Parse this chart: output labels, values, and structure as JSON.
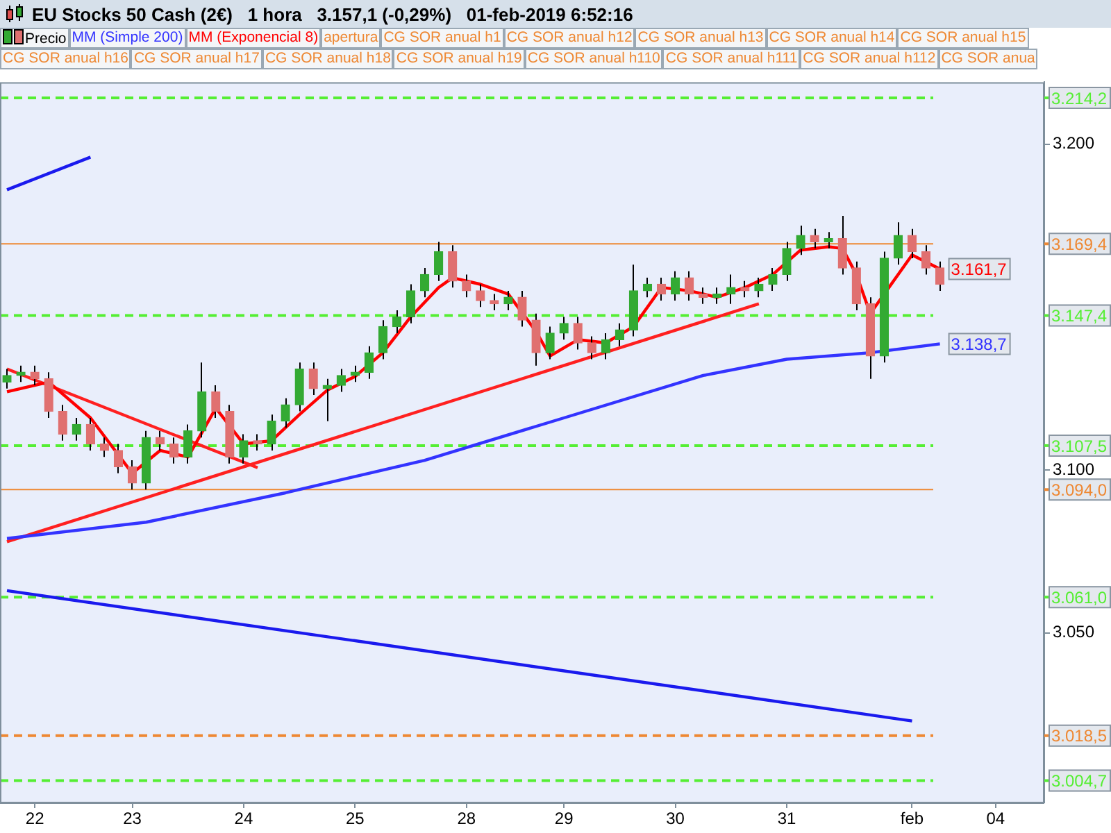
{
  "chart_data": {
    "type": "candlestick",
    "title": "EU Stocks 50 Cash (2€)   1 hora   3.157,1 (-0,29%)   01-feb-2019 6:52:16",
    "legend": "top left",
    "categories": [
      null,
      null,
      "22",
      null,
      null,
      null,
      null,
      null,
      null,
      "23",
      null,
      null,
      null,
      null,
      null,
      null,
      null,
      "24",
      null,
      null,
      null,
      null,
      null,
      null,
      null,
      "25",
      null,
      null,
      null,
      null,
      null,
      null,
      null,
      "28",
      null,
      null,
      null,
      null,
      null,
      null,
      "29",
      null,
      null,
      null,
      null,
      null,
      null,
      null,
      "30",
      null,
      null,
      null,
      null,
      null,
      null,
      null,
      "31",
      null,
      null,
      null,
      null,
      null,
      null,
      null,
      null,
      "feb",
      null,
      null,
      null,
      null,
      null,
      "04",
      null,
      null,
      null
    ],
    "ylim": [
      2998,
      3219
    ],
    "yticks": [
      {
        "value": 3050,
        "label": "3.050"
      },
      {
        "value": 3100,
        "label": "3.100"
      },
      {
        "value": 3200,
        "label": "3.200"
      }
    ],
    "series": [
      {
        "name": "Precio",
        "color": "#000000",
        "ohlc": [
          [
            3127,
            3131,
            3125,
            3129
          ],
          [
            3129,
            3132,
            3127,
            3130
          ],
          [
            3130,
            3132,
            3126,
            3128
          ],
          [
            3128,
            3130,
            3116,
            3118
          ],
          [
            3118,
            3120,
            3109,
            3111
          ],
          [
            3111,
            3116,
            3109,
            3114
          ],
          [
            3114,
            3116,
            3106,
            3108
          ],
          [
            3108,
            3110,
            3104,
            3106
          ],
          [
            3106,
            3108,
            3099,
            3101
          ],
          [
            3101,
            3103,
            3094,
            3096
          ],
          [
            3096,
            3112,
            3094,
            3110
          ],
          [
            3110,
            3112,
            3106,
            3108
          ],
          [
            3108,
            3110,
            3102,
            3104
          ],
          [
            3104,
            3114,
            3102,
            3112
          ],
          [
            3112,
            3133,
            3110,
            3124
          ],
          [
            3124,
            3126,
            3116,
            3118
          ],
          [
            3118,
            3120,
            3102,
            3104
          ],
          [
            3104,
            3111,
            3102,
            3109
          ],
          [
            3109,
            3111,
            3106,
            3108
          ],
          [
            3108,
            3117,
            3106,
            3115
          ],
          [
            3115,
            3122,
            3113,
            3120
          ],
          [
            3120,
            3133,
            3118,
            3131
          ],
          [
            3131,
            3133,
            3123,
            3125
          ],
          [
            3125,
            3128,
            3115,
            3126
          ],
          [
            3126,
            3131,
            3124,
            3129
          ],
          [
            3129,
            3132,
            3127,
            3130
          ],
          [
            3130,
            3138,
            3128,
            3136
          ],
          [
            3136,
            3146,
            3134,
            3144
          ],
          [
            3144,
            3149,
            3142,
            3147
          ],
          [
            3147,
            3157,
            3145,
            3155
          ],
          [
            3155,
            3162,
            3153,
            3160
          ],
          [
            3160,
            3170,
            3158,
            3167
          ],
          [
            3167,
            3169,
            3156,
            3158
          ],
          [
            3158,
            3160,
            3153,
            3155
          ],
          [
            3155,
            3157,
            3150,
            3152
          ],
          [
            3152,
            3154,
            3149,
            3151
          ],
          [
            3151,
            3155,
            3149,
            3153
          ],
          [
            3153,
            3155,
            3144,
            3146
          ],
          [
            3146,
            3148,
            3132,
            3136
          ],
          [
            3136,
            3144,
            3134,
            3142
          ],
          [
            3142,
            3147,
            3140,
            3145
          ],
          [
            3145,
            3147,
            3137,
            3139
          ],
          [
            3139,
            3141,
            3134,
            3136
          ],
          [
            3136,
            3142,
            3134,
            3140
          ],
          [
            3140,
            3145,
            3138,
            3143
          ],
          [
            3143,
            3163,
            3141,
            3155
          ],
          [
            3155,
            3159,
            3153,
            3157
          ],
          [
            3157,
            3159,
            3152,
            3154
          ],
          [
            3154,
            3161,
            3152,
            3159
          ],
          [
            3159,
            3161,
            3152,
            3154
          ],
          [
            3154,
            3156,
            3151,
            3153
          ],
          [
            3153,
            3156,
            3151,
            3154
          ],
          [
            3154,
            3160,
            3151,
            3156
          ],
          [
            3156,
            3158,
            3153,
            3155
          ],
          [
            3155,
            3159,
            3153,
            3157
          ],
          [
            3157,
            3162,
            3155,
            3160
          ],
          [
            3160,
            3170,
            3158,
            3168
          ],
          [
            3168,
            3175,
            3166,
            3172
          ],
          [
            3172,
            3174,
            3168,
            3170
          ],
          [
            3170,
            3173,
            3168,
            3171
          ],
          [
            3171,
            3178,
            3160,
            3162
          ],
          [
            3162,
            3164,
            3149,
            3151
          ],
          [
            3151,
            3153,
            3128,
            3135
          ],
          [
            3135,
            3167,
            3133,
            3165
          ],
          [
            3165,
            3176,
            3163,
            3172
          ],
          [
            3172,
            3174,
            3165,
            3167
          ],
          [
            3167,
            3169,
            3160,
            3162
          ],
          [
            3162,
            3164,
            3155,
            3157
          ],
          null,
          null,
          null,
          null,
          null,
          null,
          null
        ],
        "colors": [
          "#33aa33",
          "#33aa33",
          "#e07070",
          "#e07070",
          "#e07070",
          "#33aa33",
          "#e07070",
          "#e07070",
          "#e07070",
          "#e07070",
          "#33aa33",
          "#e07070",
          "#e07070",
          "#33aa33",
          "#33aa33",
          "#e07070",
          "#e07070",
          "#33aa33",
          "#e07070",
          "#33aa33",
          "#33aa33",
          "#33aa33",
          "#e07070",
          "#33aa33",
          "#33aa33",
          "#33aa33",
          "#33aa33",
          "#33aa33",
          "#33aa33",
          "#33aa33",
          "#33aa33",
          "#33aa33",
          "#e07070",
          "#e07070",
          "#e07070",
          "#e07070",
          "#33aa33",
          "#e07070",
          "#e07070",
          "#33aa33",
          "#33aa33",
          "#e07070",
          "#e07070",
          "#33aa33",
          "#33aa33",
          "#33aa33",
          "#33aa33",
          "#e07070",
          "#33aa33",
          "#e07070",
          "#e07070",
          "#33aa33",
          "#33aa33",
          "#e07070",
          "#33aa33",
          "#33aa33",
          "#33aa33",
          "#33aa33",
          "#e07070",
          "#33aa33",
          "#e07070",
          "#e07070",
          "#e07070",
          "#33aa33",
          "#33aa33",
          "#e07070",
          "#e07070",
          "#e07070",
          null,
          null,
          null,
          null,
          null,
          null,
          null
        ]
      },
      {
        "type": "line",
        "name": "MM (Simple 200)",
        "color": "#3333ff",
        "values": [
          3079,
          null,
          null,
          null,
          null,
          null,
          null,
          null,
          null,
          null,
          3084,
          null,
          null,
          null,
          null,
          null,
          null,
          null,
          null,
          null,
          3093,
          null,
          null,
          null,
          null,
          null,
          null,
          null,
          null,
          null,
          3103,
          null,
          null,
          null,
          null,
          null,
          null,
          null,
          null,
          null,
          3116,
          null,
          null,
          null,
          null,
          null,
          null,
          null,
          null,
          null,
          3129,
          null,
          null,
          null,
          null,
          null,
          3134,
          null,
          null,
          null,
          null,
          null,
          3136,
          null,
          null,
          null,
          null,
          3138.7,
          null,
          null,
          null,
          null,
          null,
          null,
          null
        ],
        "value_labels": [
          null,
          null,
          null,
          null,
          null,
          null,
          null,
          null,
          null,
          null,
          null,
          null,
          null,
          null,
          null,
          null,
          null,
          null,
          null,
          null,
          null,
          null,
          null,
          null,
          null,
          null,
          null,
          null,
          null,
          null,
          null,
          null,
          null,
          null,
          null,
          null,
          null,
          null,
          null,
          null,
          null,
          null,
          null,
          null,
          null,
          null,
          null,
          null,
          null,
          null,
          null,
          null,
          null,
          null,
          null,
          null,
          null,
          null,
          null,
          null,
          null,
          null,
          null,
          null,
          null,
          null,
          null,
          "3.138,7",
          null,
          null,
          null,
          null,
          null,
          null,
          null
        ]
      },
      {
        "type": "line",
        "name": "MM (Exponencial 8)",
        "color": "#ff0000",
        "values": [
          3124,
          null,
          null,
          3127,
          null,
          null,
          3116,
          null,
          null,
          3099,
          null,
          3106,
          null,
          3104,
          null,
          3119,
          null,
          3108,
          null,
          3109,
          null,
          3117,
          null,
          3124.5,
          null,
          3128.7,
          null,
          3136,
          null,
          3147,
          null,
          3156,
          3159,
          null,
          3157,
          null,
          3154,
          null,
          3142.5,
          3135,
          null,
          3140,
          null,
          3139,
          null,
          3144,
          null,
          3156,
          null,
          3155,
          null,
          3153,
          null,
          3156,
          null,
          3160,
          null,
          3167.5,
          null,
          3168.5,
          3168,
          3160,
          3148,
          null,
          3160,
          3166,
          null,
          3161.7,
          null,
          null,
          null,
          null,
          null,
          null,
          null
        ],
        "value_labels": [
          null,
          null,
          null,
          null,
          null,
          null,
          null,
          null,
          null,
          null,
          null,
          null,
          null,
          null,
          null,
          null,
          null,
          null,
          null,
          null,
          null,
          null,
          null,
          null,
          null,
          null,
          null,
          null,
          null,
          null,
          null,
          null,
          null,
          null,
          null,
          null,
          null,
          null,
          null,
          null,
          null,
          null,
          null,
          null,
          null,
          null,
          null,
          null,
          null,
          null,
          null,
          null,
          null,
          null,
          null,
          null,
          null,
          null,
          null,
          null,
          null,
          null,
          null,
          null,
          null,
          null,
          null,
          "3.161,7",
          null,
          null,
          null,
          null,
          null,
          null,
          null
        ]
      },
      {
        "type": "line",
        "color": "#ff2020",
        "values": [
          3131,
          null,
          null,
          null,
          null,
          null,
          null,
          null,
          null,
          null,
          null,
          null,
          null,
          null,
          null,
          null,
          null,
          null,
          3100.7,
          null,
          null,
          null,
          null,
          null,
          null,
          null,
          null,
          null,
          null,
          null,
          null,
          null,
          null,
          null,
          null,
          null,
          null,
          null,
          null,
          null,
          null,
          null,
          null,
          null,
          null,
          null,
          null,
          null,
          null,
          null,
          null,
          null,
          null,
          null,
          null,
          null,
          null,
          null,
          null,
          null,
          null,
          null,
          null,
          null,
          null,
          null,
          null,
          null,
          null,
          null,
          null,
          null,
          null,
          null,
          null
        ]
      },
      {
        "type": "line",
        "color": "#ff2020",
        "values": [
          3078,
          null,
          null,
          null,
          null,
          null,
          null,
          null,
          null,
          null,
          null,
          null,
          null,
          null,
          null,
          null,
          null,
          null,
          null,
          null,
          null,
          null,
          null,
          null,
          null,
          null,
          null,
          null,
          null,
          null,
          null,
          null,
          null,
          null,
          null,
          null,
          null,
          null,
          null,
          null,
          null,
          null,
          null,
          null,
          null,
          null,
          null,
          null,
          null,
          null,
          null,
          null,
          null,
          null,
          3151,
          null,
          null,
          null,
          null,
          null,
          null,
          null,
          null,
          null,
          null,
          null,
          null,
          null,
          null,
          null,
          null,
          null,
          null,
          null,
          null
        ]
      },
      {
        "type": "line",
        "color": "#1a1aee",
        "values": [
          3186,
          null,
          null,
          null,
          null,
          null,
          3196,
          null,
          null,
          null,
          null,
          null,
          null,
          null,
          null,
          null,
          null,
          null,
          null,
          null,
          null,
          null,
          null,
          null,
          null,
          null,
          null,
          null,
          null,
          null,
          null,
          null,
          null,
          null,
          null,
          null,
          null,
          null,
          null,
          null,
          null,
          null,
          null,
          null,
          null,
          null,
          null,
          null,
          null,
          null,
          null,
          null,
          null,
          null,
          null,
          null,
          null,
          null,
          null,
          null,
          null,
          null,
          null,
          null,
          null,
          null,
          null,
          null,
          null,
          null,
          null,
          null,
          null,
          null,
          null
        ]
      },
      {
        "type": "line",
        "color": "#1a1aee",
        "values": [
          3063,
          null,
          null,
          null,
          null,
          null,
          null,
          null,
          null,
          null,
          null,
          null,
          null,
          null,
          null,
          null,
          null,
          null,
          null,
          null,
          null,
          null,
          null,
          null,
          null,
          null,
          null,
          null,
          null,
          null,
          null,
          null,
          null,
          null,
          null,
          null,
          null,
          null,
          null,
          null,
          null,
          null,
          null,
          null,
          null,
          null,
          null,
          null,
          null,
          null,
          null,
          null,
          null,
          null,
          null,
          null,
          null,
          null,
          null,
          null,
          null,
          null,
          null,
          null,
          null,
          3023,
          null,
          null,
          null,
          null,
          null,
          null,
          null,
          null,
          null
        ]
      }
    ],
    "ref_lines": [
      {
        "axis": "y",
        "value": 3214.2,
        "label": "3.214,2",
        "color": "#55ee33",
        "line_style": "dashed"
      },
      {
        "axis": "y",
        "value": 3169.4,
        "label": "3.169,4",
        "color": "#ee8833",
        "line_style": "solid"
      },
      {
        "axis": "y",
        "value": 3147.4,
        "label": "3.147,4",
        "color": "#55ee33",
        "line_style": "dashed"
      },
      {
        "axis": "y",
        "value": 3107.5,
        "label": "3.107,5",
        "color": "#55ee33",
        "line_style": "dashed"
      },
      {
        "axis": "y",
        "value": 3094.0,
        "label": "3.094,0",
        "color": "#ee8833",
        "line_style": "solid"
      },
      {
        "axis": "y",
        "value": 3061.0,
        "label": "3.061,0",
        "color": "#55ee33",
        "line_style": "dashed"
      },
      {
        "axis": "y",
        "value": 3018.5,
        "label": "3.018,5",
        "color": "#ee8833",
        "line_style": "dashed"
      },
      {
        "axis": "y",
        "value": 3004.7,
        "label": "3.004,7",
        "color": "#55ee33",
        "line_style": "dashed"
      }
    ],
    "annotations": [
      "apertura",
      "CG SOR anual h1",
      "CG SOR anual h12",
      "CG SOR anual h13",
      "CG SOR anual h14",
      "CG SOR anual h15",
      "CG SOR anual h16",
      "CG SOR anual h17",
      "CG SOR anual h18",
      "CG SOR anual h19",
      "CG SOR anual h110",
      "CG SOR anual h111",
      "CG SOR anual h112",
      "CG SOR anua"
    ]
  }
}
